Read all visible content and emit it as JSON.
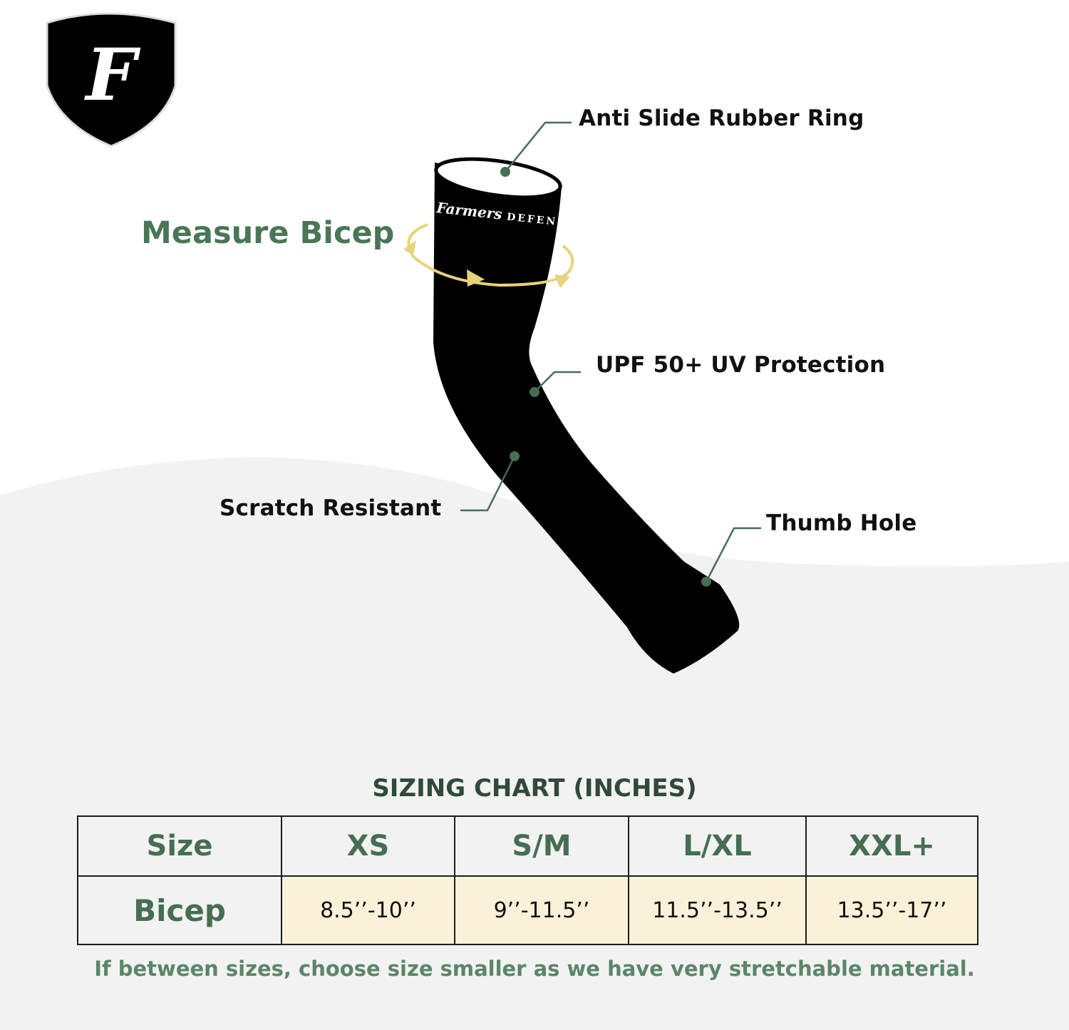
{
  "brand": {
    "logo_letter": "F",
    "sleeve_print": "Farmers DEFENSE"
  },
  "measure_label": "Measure Bicep",
  "callouts": {
    "anti_slide": "Anti Slide Rubber Ring",
    "upf": "UPF 50+ UV Protection",
    "scratch": "Scratch Resistant",
    "thumb": "Thumb Hole"
  },
  "colors": {
    "accent_green": "#466e52",
    "arrow_yellow": "#e8d27a",
    "cell_cream": "#faf1d8",
    "background_gray": "#f2f2f2"
  },
  "sizing_chart": {
    "title": "SIZING CHART (INCHES)",
    "headers": [
      "Size",
      "XS",
      "S/M",
      "L/XL",
      "XXL+"
    ],
    "row_label": "Bicep",
    "values": [
      "8.5’’-10’’",
      "9’’-11.5’’",
      "11.5’’-13.5’’",
      "13.5’’-17’’"
    ],
    "note": "If between sizes, choose size smaller as we have very stretchable material."
  }
}
